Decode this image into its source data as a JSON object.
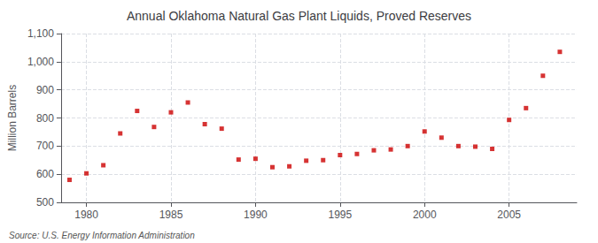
{
  "chart_data": {
    "type": "scatter",
    "title": "Annual Oklahoma Natural Gas Plant Liquids, Proved Reserves",
    "ylabel": "Million Barrels",
    "source": "Source: U.S. Energy Information Administration",
    "x": [
      1979,
      1980,
      1981,
      1982,
      1983,
      1984,
      1985,
      1986,
      1987,
      1988,
      1989,
      1990,
      1991,
      1992,
      1993,
      1994,
      1995,
      1996,
      1997,
      1998,
      1999,
      2000,
      2001,
      2002,
      2003,
      2004,
      2005,
      2006,
      2007,
      2008
    ],
    "values": [
      580,
      603,
      632,
      745,
      825,
      768,
      820,
      855,
      778,
      762,
      652,
      655,
      625,
      628,
      648,
      650,
      668,
      672,
      685,
      688,
      700,
      752,
      730,
      700,
      698,
      690,
      793,
      835,
      950,
      1035
    ],
    "color": "#cc0000",
    "marker": "square",
    "xlim": [
      1978.5,
      2009
    ],
    "xticks": [
      1980,
      1985,
      1990,
      1995,
      2000,
      2005
    ],
    "ylim": [
      500,
      1100
    ],
    "yticks": [
      500,
      600,
      700,
      800,
      900,
      {
        "value": 1000,
        "label": "1,000"
      },
      {
        "value": 1100,
        "label": "1,100"
      }
    ],
    "grid": true
  }
}
